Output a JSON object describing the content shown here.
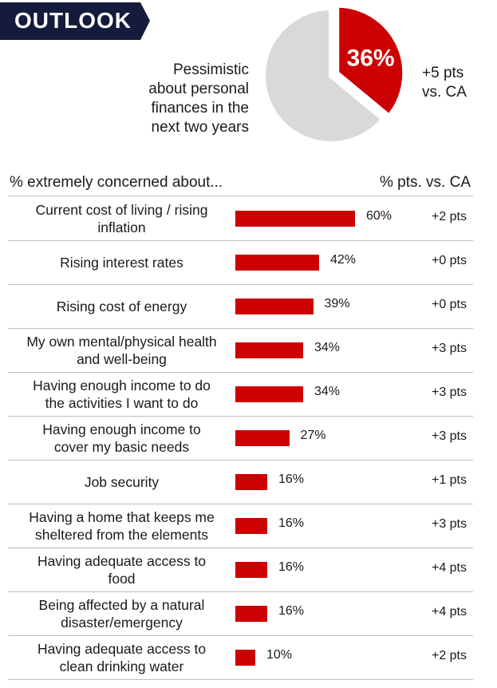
{
  "banner": {
    "title": "OUTLOOK",
    "color": "#141b3c"
  },
  "pie": {
    "caption_lines": [
      "Pessimistic",
      "about personal",
      "finances in the",
      "next two years"
    ],
    "value": 36,
    "value_label": "36%",
    "comparison_lines": [
      "+5 pts",
      "vs. CA"
    ],
    "highlight_color": "#cc0000",
    "rest_color": "#d9d9d9"
  },
  "chart_data": {
    "type": "bar",
    "orientation": "horizontal",
    "title": "% extremely concerned about...",
    "comparison_header": "% pts. vs. CA",
    "bar_color": "#cc0000",
    "xlim": [
      0,
      100
    ],
    "categories": [
      "Current cost of living / rising inflation",
      "Rising interest rates",
      "Rising cost of energy",
      "My own mental/physical health and well-being",
      "Having enough income to do the activities I want to do",
      "Having enough income to cover my basic needs",
      "Job security",
      "Having a home that keeps me sheltered from the elements",
      "Having adequate access to food",
      "Being affected by a natural disaster/emergency",
      "Having adequate access to clean drinking water"
    ],
    "values": [
      60,
      42,
      39,
      34,
      34,
      27,
      16,
      16,
      16,
      16,
      10
    ],
    "value_labels": [
      "60%",
      "42%",
      "39%",
      "34%",
      "34%",
      "27%",
      "16%",
      "16%",
      "16%",
      "16%",
      "10%"
    ],
    "diffs": [
      "+2 pts",
      "+0 pts",
      "+0 pts",
      "+3 pts",
      "+3 pts",
      "+3 pts",
      "+1 pts",
      "+3 pts",
      "+4 pts",
      "+4 pts",
      "+2 pts"
    ],
    "label_lines": [
      [
        "Current cost of living / rising",
        "inflation"
      ],
      [
        "Rising interest rates"
      ],
      [
        "Rising cost of energy"
      ],
      [
        "My own mental/physical health",
        "and well-being"
      ],
      [
        "Having enough income to do",
        "the activities I want to do"
      ],
      [
        "Having enough income to",
        "cover my basic needs"
      ],
      [
        "Job security"
      ],
      [
        "Having a home that keeps me",
        "sheltered from the elements"
      ],
      [
        "Having adequate access to",
        "food"
      ],
      [
        "Being affected by a natural",
        "disaster/emergency"
      ],
      [
        "Having adequate access to",
        "clean drinking water"
      ]
    ]
  }
}
